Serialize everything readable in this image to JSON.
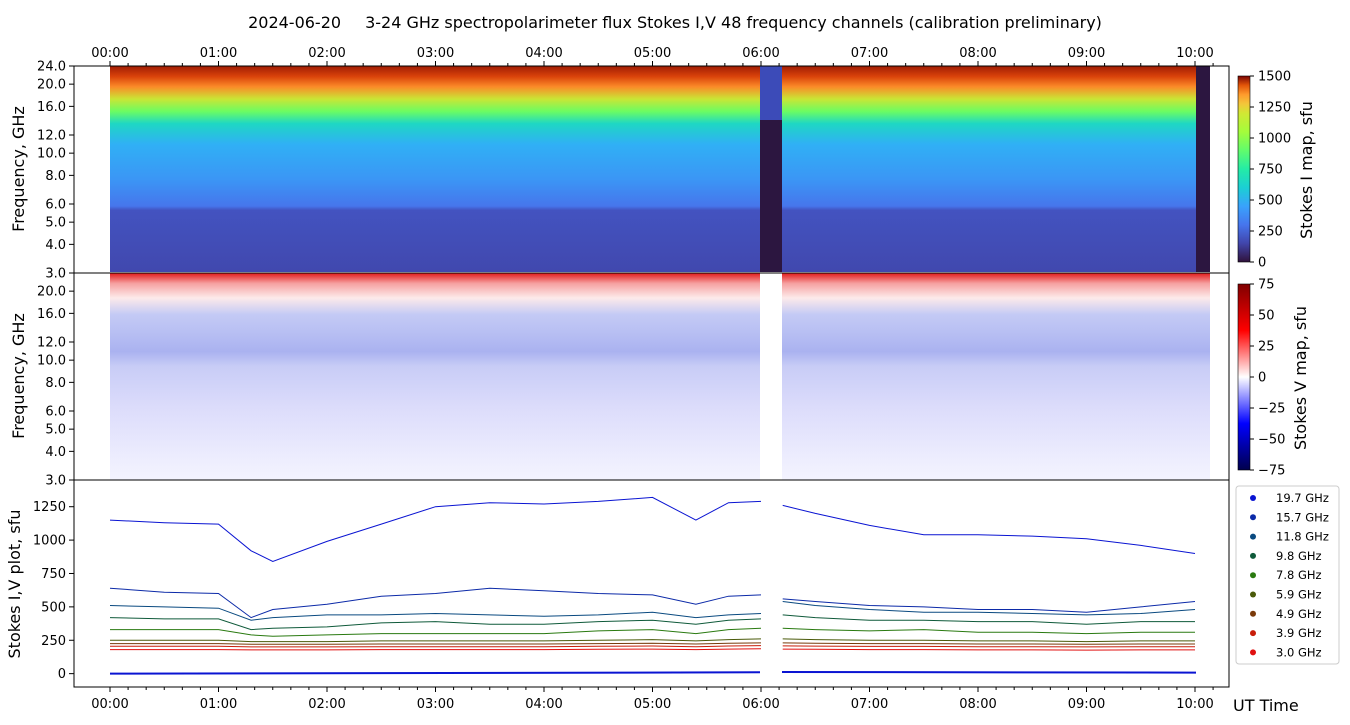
{
  "header": {
    "date": "2024-06-20",
    "title": "3-24 GHz spectropolarimeter flux   Stokes I,V   48 frequency channels   (calibration preliminary)"
  },
  "x_axis": {
    "time_ticks": [
      "00:00",
      "01:00",
      "02:00",
      "03:00",
      "04:00",
      "05:00",
      "06:00",
      "07:00",
      "08:00",
      "09:00",
      "10:00"
    ],
    "label": "UT Time"
  },
  "chart_data": [
    {
      "type": "heatmap",
      "title": "Stokes I",
      "ylabel": "Frequency, GHz",
      "yticks": [
        "3.0",
        "4.0",
        "5.0",
        "6.0",
        "8.0",
        "10.0",
        "12.0",
        "16.0",
        "20.0",
        "24.0"
      ],
      "colorbar_label": "Stokes I map, sfu",
      "colorbar_ticks": [
        "0",
        "250",
        "500",
        "750",
        "1000",
        "1250",
        "1500"
      ],
      "vmin": 0,
      "vmax": 1500,
      "colormap": "turbo",
      "data_gaps_ut": [
        [
          "06:00",
          "06:12"
        ],
        [
          "10:02",
          "10:10"
        ]
      ]
    },
    {
      "type": "heatmap",
      "title": "Stokes V",
      "ylabel": "Frequency, GHz",
      "yticks": [
        "3.0",
        "4.0",
        "5.0",
        "6.0",
        "8.0",
        "10.0",
        "12.0",
        "16.0",
        "20.0"
      ],
      "colorbar_label": "Stokes V map, sfu",
      "colorbar_ticks": [
        "75",
        "50",
        "25",
        "0",
        "−25",
        "−50",
        "−75"
      ],
      "vmin": -75,
      "vmax": 75,
      "colormap": "seismic"
    },
    {
      "type": "line",
      "ylabel": "Stokes I,V plot, sfu",
      "ytick_labels": [
        "0",
        "250",
        "500",
        "750",
        "1000",
        "1250"
      ],
      "yticks": [
        0,
        250,
        500,
        750,
        1000,
        1250
      ],
      "ylim": [
        -100,
        1450
      ],
      "x_hours": [
        0,
        0.5,
        1,
        1.3,
        1.5,
        2,
        2.5,
        3,
        3.5,
        4,
        4.5,
        5,
        5.4,
        5.7,
        6,
        6.2,
        6.5,
        7,
        7.5,
        8,
        8.5,
        9,
        9.5,
        10
      ],
      "legend_position": "right",
      "series": [
        {
          "name": "19.7 GHz",
          "color": "#0a14d2",
          "values": [
            1150,
            1130,
            1120,
            920,
            840,
            990,
            1120,
            1250,
            1280,
            1270,
            1290,
            1320,
            1150,
            1280,
            1290,
            1260,
            1200,
            1110,
            1040,
            1040,
            1030,
            1010,
            960,
            900
          ]
        },
        {
          "name": "15.7 GHz",
          "color": "#0c2aa8",
          "values": [
            640,
            610,
            600,
            420,
            480,
            520,
            580,
            600,
            640,
            620,
            600,
            590,
            520,
            580,
            590,
            560,
            540,
            510,
            500,
            480,
            480,
            460,
            500,
            540
          ]
        },
        {
          "name": "11.8 GHz",
          "color": "#0a4a80",
          "values": [
            510,
            500,
            490,
            400,
            420,
            440,
            440,
            450,
            440,
            430,
            440,
            460,
            420,
            440,
            450,
            540,
            510,
            480,
            460,
            460,
            450,
            440,
            450,
            480
          ]
        },
        {
          "name": "9.8 GHz",
          "color": "#0f5a3a",
          "values": [
            420,
            410,
            410,
            330,
            340,
            350,
            380,
            390,
            370,
            370,
            390,
            400,
            370,
            400,
            410,
            440,
            420,
            400,
            400,
            390,
            390,
            370,
            390,
            390
          ]
        },
        {
          "name": "7.8 GHz",
          "color": "#2a7a10",
          "values": [
            330,
            330,
            330,
            290,
            280,
            290,
            300,
            300,
            300,
            300,
            320,
            330,
            300,
            330,
            340,
            340,
            330,
            320,
            330,
            310,
            310,
            300,
            310,
            310
          ]
        },
        {
          "name": "5.9 GHz",
          "color": "#4a5a0a",
          "values": [
            250,
            250,
            250,
            240,
            240,
            240,
            245,
            245,
            245,
            245,
            250,
            255,
            245,
            255,
            260,
            260,
            255,
            250,
            250,
            245,
            245,
            240,
            245,
            245
          ]
        },
        {
          "name": "4.9 GHz",
          "color": "#7a3a0a",
          "values": [
            225,
            225,
            225,
            220,
            220,
            220,
            222,
            222,
            222,
            222,
            225,
            228,
            222,
            228,
            230,
            230,
            228,
            225,
            225,
            222,
            222,
            220,
            222,
            222
          ]
        },
        {
          "name": "3.9 GHz",
          "color": "#c81e0a",
          "values": [
            205,
            205,
            205,
            200,
            200,
            200,
            202,
            202,
            202,
            202,
            205,
            207,
            202,
            207,
            210,
            208,
            206,
            204,
            204,
            202,
            202,
            200,
            202,
            202
          ]
        },
        {
          "name": "3.0 GHz",
          "color": "#e01010",
          "values": [
            180,
            180,
            180,
            178,
            178,
            178,
            180,
            180,
            180,
            180,
            182,
            184,
            180,
            184,
            186,
            184,
            182,
            180,
            180,
            178,
            178,
            176,
            178,
            178
          ]
        }
      ]
    }
  ]
}
